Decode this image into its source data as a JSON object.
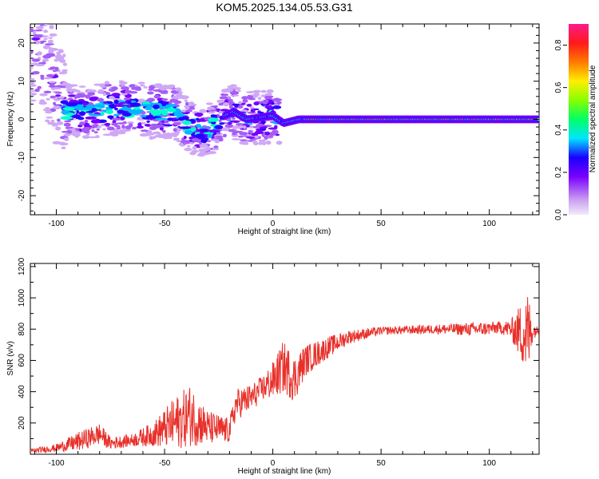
{
  "title": "KOM5.2025.134.05.53.G31",
  "chart_data": [
    {
      "type": "heatmap",
      "xlabel": "Height of straight line (km)",
      "ylabel": "Frequency (Hz)",
      "xlim": [
        -112,
        123
      ],
      "ylim": [
        -25,
        25
      ],
      "xticks": [
        -100,
        -50,
        0,
        50,
        100
      ],
      "yticks": [
        -20,
        -10,
        0,
        10,
        20
      ],
      "colorbar": {
        "label": "Normalized spectral amplitude",
        "range": [
          0.0,
          0.9
        ],
        "ticks": [
          0.0,
          0.2,
          0.4,
          0.6,
          0.8
        ]
      },
      "ridge": [
        {
          "x": -112,
          "y": 20
        },
        {
          "x": -105,
          "y": 14
        },
        {
          "x": -95,
          "y": 2
        },
        {
          "x": -85,
          "y": 2
        },
        {
          "x": -75,
          "y": 3
        },
        {
          "x": -65,
          "y": 3
        },
        {
          "x": -55,
          "y": 2
        },
        {
          "x": -45,
          "y": 2
        },
        {
          "x": -38,
          "y": -2
        },
        {
          "x": -30,
          "y": -3
        },
        {
          "x": -22,
          "y": 1
        },
        {
          "x": -18,
          "y": 2
        },
        {
          "x": -12,
          "y": 0
        },
        {
          "x": 0,
          "y": 1
        },
        {
          "x": 5,
          "y": -1
        },
        {
          "x": 12,
          "y": 0
        },
        {
          "x": 20,
          "y": 0
        },
        {
          "x": 50,
          "y": 0
        },
        {
          "x": 100,
          "y": 0
        },
        {
          "x": 123,
          "y": 0
        }
      ]
    },
    {
      "type": "line",
      "xlabel": "Height of straight line (km)",
      "ylabel": "SNR (v/v)",
      "xlim": [
        -112,
        123
      ],
      "ylim": [
        0,
        1220
      ],
      "xticks": [
        -100,
        -50,
        0,
        50,
        100
      ],
      "yticks": [
        200,
        400,
        600,
        800,
        1000,
        1200
      ],
      "color": "#e8302a",
      "envelope": [
        {
          "x": -112,
          "base": 20,
          "amp": 15
        },
        {
          "x": -100,
          "base": 40,
          "amp": 25
        },
        {
          "x": -90,
          "base": 80,
          "amp": 60
        },
        {
          "x": -80,
          "base": 130,
          "amp": 70
        },
        {
          "x": -75,
          "base": 70,
          "amp": 40
        },
        {
          "x": -65,
          "base": 90,
          "amp": 40
        },
        {
          "x": -55,
          "base": 130,
          "amp": 80
        },
        {
          "x": -45,
          "base": 200,
          "amp": 170
        },
        {
          "x": -38,
          "base": 250,
          "amp": 200
        },
        {
          "x": -30,
          "base": 170,
          "amp": 110
        },
        {
          "x": -20,
          "base": 150,
          "amp": 80
        },
        {
          "x": -17,
          "base": 320,
          "amp": 100
        },
        {
          "x": -10,
          "base": 360,
          "amp": 90
        },
        {
          "x": -5,
          "base": 420,
          "amp": 80
        },
        {
          "x": 0,
          "base": 470,
          "amp": 120
        },
        {
          "x": 5,
          "base": 560,
          "amp": 170
        },
        {
          "x": 10,
          "base": 480,
          "amp": 150
        },
        {
          "x": 15,
          "base": 600,
          "amp": 100
        },
        {
          "x": 25,
          "base": 680,
          "amp": 70
        },
        {
          "x": 35,
          "base": 750,
          "amp": 45
        },
        {
          "x": 50,
          "base": 790,
          "amp": 25
        },
        {
          "x": 75,
          "base": 800,
          "amp": 30
        },
        {
          "x": 95,
          "base": 800,
          "amp": 45
        },
        {
          "x": 105,
          "base": 810,
          "amp": 40
        },
        {
          "x": 110,
          "base": 800,
          "amp": 60
        },
        {
          "x": 115,
          "base": 780,
          "amp": 200
        },
        {
          "x": 118,
          "base": 760,
          "amp": 300
        },
        {
          "x": 120,
          "base": 790,
          "amp": 60
        },
        {
          "x": 123,
          "base": 790,
          "amp": 15
        }
      ]
    }
  ]
}
